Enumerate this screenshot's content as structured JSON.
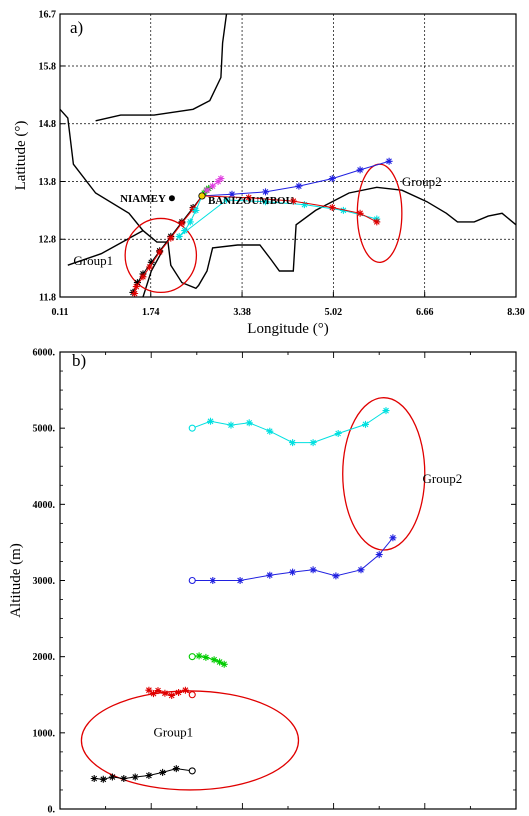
{
  "chart_data": [
    {
      "type": "line",
      "panel_label": "a)",
      "xlabel": "Longitude (°)",
      "ylabel": "Latitude (°)",
      "xlim": [
        0.11,
        8.3
      ],
      "ylim": [
        11.8,
        16.7
      ],
      "x_ticks": [
        "0.11",
        "1.74",
        "3.38",
        "5.02",
        "6.66",
        "8.30"
      ],
      "x_tick_values": [
        0.11,
        1.74,
        3.38,
        5.02,
        6.66,
        8.3
      ],
      "y_ticks": [
        "11.8",
        "12.8",
        "13.8",
        "14.8",
        "15.8",
        "16.7"
      ],
      "y_tick_values": [
        11.8,
        12.8,
        13.8,
        14.8,
        15.8,
        16.7
      ],
      "grid": true,
      "places": [
        {
          "label": "NIAMEY",
          "lon": 2.12,
          "lat": 13.51
        },
        {
          "label": "BANIZOUMBOU",
          "lon": 2.66,
          "lat": 13.55
        }
      ],
      "annotations": [
        {
          "text": "Group1",
          "lon": 0.35,
          "lat": 12.35
        },
        {
          "text": "Group2",
          "lon": 6.25,
          "lat": 13.72
        }
      ],
      "group_ellipses": [
        {
          "cx": 1.92,
          "cy": 12.52,
          "rx": 0.64,
          "ry": 0.64
        },
        {
          "cx": 5.85,
          "cy": 13.25,
          "rx": 0.4,
          "ry": 0.85
        }
      ],
      "borders": [
        [
          [
            0.11,
            15.05
          ],
          [
            0.25,
            14.9
          ],
          [
            0.35,
            14.1
          ],
          [
            0.75,
            13.6
          ],
          [
            1.35,
            13.25
          ],
          [
            1.6,
            12.95
          ],
          [
            1.85,
            12.75
          ],
          [
            2.05,
            12.75
          ],
          [
            2.1,
            12.35
          ],
          [
            2.3,
            12.05
          ],
          [
            2.55,
            11.95
          ],
          [
            2.6,
            12.0
          ],
          [
            2.75,
            12.25
          ],
          [
            2.85,
            12.65
          ],
          [
            3.3,
            12.7
          ],
          [
            3.7,
            12.7
          ],
          [
            3.9,
            12.45
          ],
          [
            4.05,
            12.25
          ],
          [
            4.3,
            12.25
          ],
          [
            4.35,
            13.05
          ],
          [
            4.7,
            13.3
          ],
          [
            5.3,
            13.6
          ],
          [
            5.8,
            13.7
          ],
          [
            6.25,
            13.65
          ],
          [
            6.7,
            13.45
          ],
          [
            7.05,
            13.25
          ],
          [
            7.25,
            13.1
          ],
          [
            7.55,
            13.1
          ],
          [
            7.8,
            13.2
          ],
          [
            8.05,
            13.25
          ],
          [
            8.3,
            13.05
          ]
        ],
        [
          [
            0.75,
            14.85
          ],
          [
            1.2,
            14.95
          ],
          [
            1.8,
            14.95
          ],
          [
            2.5,
            15.05
          ],
          [
            2.8,
            15.2
          ],
          [
            3.0,
            15.6
          ],
          [
            3.03,
            16.2
          ],
          [
            3.1,
            16.7
          ]
        ],
        [
          [
            0.25,
            12.35
          ],
          [
            0.85,
            12.55
          ],
          [
            1.6,
            12.95
          ]
        ],
        [
          [
            1.6,
            11.8
          ],
          [
            1.75,
            12.25
          ],
          [
            1.95,
            12.6
          ]
        ]
      ],
      "series": [
        {
          "color": "#000000",
          "marker": "star",
          "points": [
            [
              2.66,
              13.55
            ],
            [
              2.5,
              13.35
            ],
            [
              2.3,
              13.1
            ],
            [
              2.1,
              12.85
            ],
            [
              1.9,
              12.6
            ],
            [
              1.75,
              12.4
            ],
            [
              1.6,
              12.2
            ],
            [
              1.5,
              12.05
            ],
            [
              1.42,
              11.88
            ]
          ]
        },
        {
          "color": "#e00000",
          "marker": "star",
          "points": [
            [
              2.66,
              13.55
            ],
            [
              2.5,
              13.32
            ],
            [
              2.3,
              13.08
            ],
            [
              2.1,
              12.82
            ],
            [
              1.9,
              12.58
            ],
            [
              1.72,
              12.32
            ],
            [
              1.6,
              12.15
            ],
            [
              1.48,
              11.98
            ],
            [
              1.45,
              11.86
            ]
          ]
        },
        {
          "color": "#00cc00",
          "marker": "star",
          "points": [
            [
              2.66,
              13.55
            ],
            [
              2.7,
              13.6
            ],
            [
              2.74,
              13.65
            ],
            [
              2.78,
              13.68
            ]
          ]
        },
        {
          "color": "#00e0e0",
          "marker": "star",
          "points": [
            [
              2.66,
              13.55
            ],
            [
              2.55,
              13.3
            ],
            [
              2.45,
              13.1
            ],
            [
              2.35,
              12.95
            ],
            [
              2.25,
              12.85
            ],
            [
              3.1,
              13.48
            ],
            [
              3.8,
              13.45
            ],
            [
              4.5,
              13.4
            ],
            [
              5.2,
              13.3
            ],
            [
              5.8,
              13.15
            ]
          ]
        },
        {
          "color": "#2020e0",
          "marker": "star",
          "points": [
            [
              2.66,
              13.55
            ],
            [
              3.2,
              13.58
            ],
            [
              3.8,
              13.62
            ],
            [
              4.4,
              13.72
            ],
            [
              5.0,
              13.85
            ],
            [
              5.5,
              14.0
            ],
            [
              6.02,
              14.15
            ]
          ]
        },
        {
          "color": "#e040e0",
          "marker": "star",
          "points": [
            [
              2.66,
              13.55
            ],
            [
              2.75,
              13.65
            ],
            [
              2.85,
              13.72
            ],
            [
              2.95,
              13.8
            ],
            [
              3.0,
              13.85
            ]
          ]
        },
        {
          "color": "#e00000",
          "marker": "star",
          "points": [
            [
              2.66,
              13.55
            ],
            [
              3.5,
              13.52
            ],
            [
              4.3,
              13.46
            ],
            [
              5.0,
              13.35
            ],
            [
              5.5,
              13.25
            ],
            [
              5.8,
              13.1
            ]
          ]
        }
      ]
    },
    {
      "type": "line",
      "panel_label": "b)",
      "xlabel": "",
      "ylabel": "Altitude (m)",
      "xlim": [
        0,
        10
      ],
      "ylim": [
        0,
        6000
      ],
      "y_ticks": [
        "0.",
        "1000.",
        "2000.",
        "3000.",
        "4000.",
        "5000.",
        "6000."
      ],
      "y_tick_values": [
        0,
        1000,
        2000,
        3000,
        4000,
        5000,
        6000
      ],
      "annotations": [
        {
          "text": "Group1",
          "x": 2.05,
          "y": 950
        },
        {
          "text": "Group2",
          "x": 7.95,
          "y": 4280
        }
      ],
      "group_ellipses": [
        {
          "cx": 2.85,
          "cy": 900,
          "rx": 2.38,
          "ry": 650
        },
        {
          "cx": 7.1,
          "cy": 4400,
          "rx": 0.9,
          "ry": 1000
        }
      ],
      "series": [
        {
          "color": "#00e0e0",
          "points": [
            [
              2.9,
              5000
            ],
            [
              3.3,
              5090
            ],
            [
              3.75,
              5040
            ],
            [
              4.15,
              5070
            ],
            [
              4.6,
              4960
            ],
            [
              5.1,
              4810
            ],
            [
              5.55,
              4810
            ],
            [
              6.1,
              4930
            ],
            [
              6.7,
              5050
            ],
            [
              7.15,
              5230
            ]
          ]
        },
        {
          "color": "#2020e0",
          "points": [
            [
              2.9,
              3000
            ],
            [
              3.35,
              3000
            ],
            [
              3.95,
              3000
            ],
            [
              4.6,
              3070
            ],
            [
              5.1,
              3110
            ],
            [
              5.55,
              3140
            ],
            [
              6.05,
              3060
            ],
            [
              6.6,
              3140
            ],
            [
              7.0,
              3340
            ],
            [
              7.3,
              3560
            ]
          ]
        },
        {
          "color": "#00cc00",
          "points": [
            [
              2.9,
              2000
            ],
            [
              3.05,
              2010
            ],
            [
              3.2,
              1990
            ],
            [
              3.38,
              1960
            ],
            [
              3.5,
              1930
            ],
            [
              3.6,
              1900
            ]
          ]
        },
        {
          "color": "#e00000",
          "points": [
            [
              2.9,
              1500
            ],
            [
              2.75,
              1560
            ],
            [
              2.6,
              1530
            ],
            [
              2.45,
              1490
            ],
            [
              2.3,
              1520
            ],
            [
              2.15,
              1555
            ],
            [
              2.05,
              1515
            ],
            [
              1.95,
              1560
            ]
          ]
        },
        {
          "color": "#000000",
          "points": [
            [
              2.9,
              500
            ],
            [
              2.55,
              530
            ],
            [
              2.25,
              480
            ],
            [
              1.95,
              440
            ],
            [
              1.65,
              420
            ],
            [
              1.4,
              400
            ],
            [
              1.15,
              420
            ],
            [
              0.95,
              390
            ],
            [
              0.75,
              400
            ]
          ]
        }
      ]
    }
  ]
}
